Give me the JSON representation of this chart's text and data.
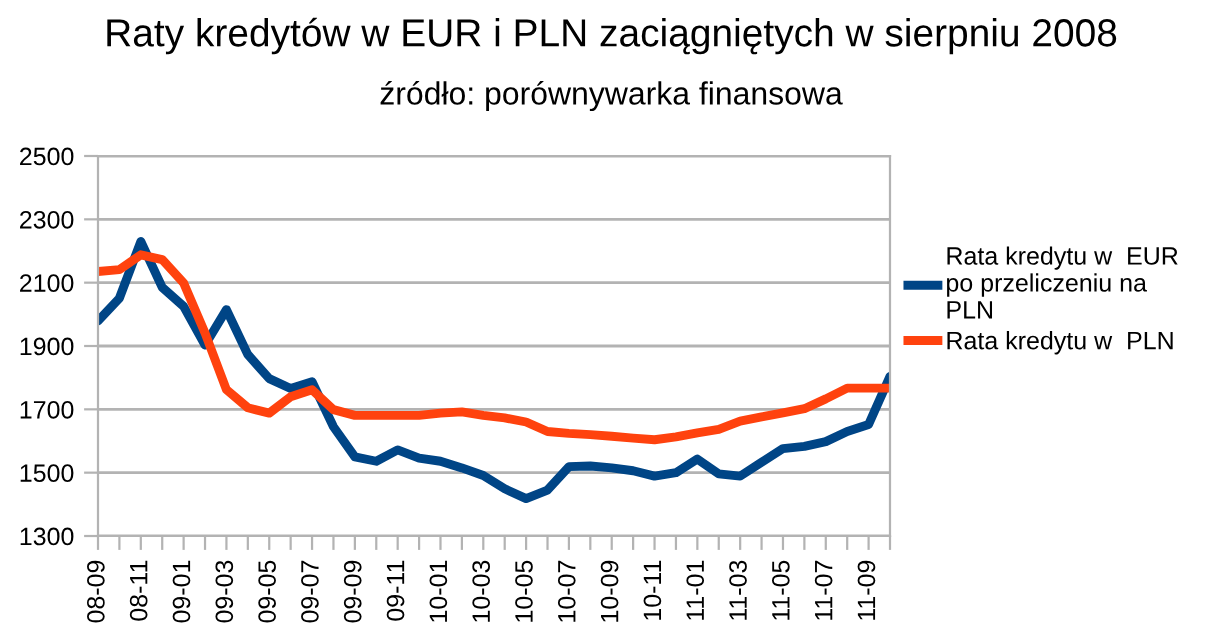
{
  "chart_data": {
    "type": "line",
    "title": "Raty kredytów w EUR i PLN zaciągniętych w sierpniu 2008",
    "subtitle": "źródło: porównywarka finansowa",
    "categories": [
      "08-09",
      null,
      "08-11",
      null,
      "09-01",
      null,
      "09-03",
      null,
      "09-05",
      null,
      "09-07",
      null,
      "09-09",
      null,
      "09-11",
      null,
      "10-01",
      null,
      "10-03",
      null,
      "10-05",
      null,
      "10-07",
      null,
      "10-09",
      null,
      "10-11",
      null,
      "11-01",
      null,
      "11-03",
      null,
      "11-05",
      null,
      "11-07",
      null,
      "11-09",
      null
    ],
    "series": [
      {
        "name": "Rata kredytu w  EUR po przeliczeniu na PLN",
        "color": "#004586",
        "values": [
          1979,
          2051,
          2230,
          2085,
          2025,
          1903,
          2015,
          1873,
          1797,
          1766,
          1787,
          1645,
          1550,
          1536,
          1572,
          1546,
          1536,
          1515,
          1491,
          1449,
          1418,
          1445,
          1519,
          1521,
          1515,
          1506,
          1489,
          1500,
          1543,
          1496,
          1489,
          1533,
          1576,
          1583,
          1598,
          1630,
          1652,
          1804
        ]
      },
      {
        "name": "Rata kredytu w  PLN",
        "color": "#ff420e",
        "values": [
          2135,
          2141,
          2188,
          2173,
          2099,
          1941,
          1762,
          1705,
          1688,
          1740,
          1762,
          1699,
          1681,
          1681,
          1681,
          1681,
          1688,
          1692,
          1681,
          1673,
          1660,
          1630,
          1624,
          1620,
          1615,
          1609,
          1604,
          1613,
          1626,
          1637,
          1663,
          1676,
          1689,
          1702,
          1733,
          1767,
          1767,
          1767
        ]
      }
    ],
    "ylim": [
      1300,
      2500
    ],
    "yticks": [
      1300,
      1500,
      1700,
      1900,
      2100,
      2300,
      2500
    ],
    "grid": "y",
    "legend": "right",
    "marker": "none",
    "line_style": "solid"
  }
}
